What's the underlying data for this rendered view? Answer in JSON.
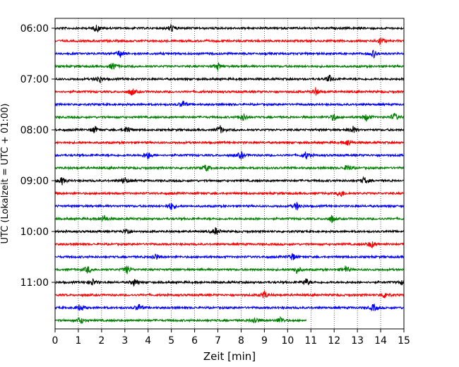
{
  "chart_data": {
    "type": "line",
    "xlabel": "Zeit  [min]",
    "ylabel": "UTC (Lokalzeit = UTC + 01:00)",
    "xlim": [
      0,
      15
    ],
    "x_ticks": [
      "0",
      "1",
      "2",
      "3",
      "4",
      "5",
      "6",
      "7",
      "8",
      "9",
      "10",
      "11",
      "12",
      "13",
      "14",
      "15"
    ],
    "y_ticks": [
      "06:00",
      "07:00",
      "08:00",
      "09:00",
      "10:00",
      "11:00"
    ],
    "grid": "vertical dotted at each minute",
    "trace_colors": [
      "#000000",
      "#ff0000",
      "#0000ff",
      "#008000"
    ],
    "trace_interval_min": 15,
    "traces": [
      {
        "start": "06:00",
        "end_min": 15,
        "events": [
          1.8,
          5.0
        ]
      },
      {
        "start": "06:15",
        "end_min": 15,
        "events": [
          14.0
        ]
      },
      {
        "start": "06:30",
        "end_min": 15,
        "events": [
          2.8,
          13.7
        ]
      },
      {
        "start": "06:45",
        "end_min": 15,
        "events": [
          2.5,
          7.0
        ]
      },
      {
        "start": "07:00",
        "end_min": 15,
        "events": [
          1.9,
          11.8
        ]
      },
      {
        "start": "07:15",
        "end_min": 15,
        "events": [
          3.3,
          11.2
        ]
      },
      {
        "start": "07:30",
        "end_min": 15,
        "events": [
          5.5
        ]
      },
      {
        "start": "07:45",
        "end_min": 15,
        "events": [
          8.1,
          12.0,
          13.4,
          14.6
        ]
      },
      {
        "start": "08:00",
        "end_min": 15,
        "events": [
          1.7,
          3.1,
          7.1,
          12.8
        ]
      },
      {
        "start": "08:15",
        "end_min": 15,
        "events": [
          12.6
        ]
      },
      {
        "start": "08:30",
        "end_min": 15,
        "events": [
          4.0,
          8.0,
          10.8
        ]
      },
      {
        "start": "08:45",
        "end_min": 15,
        "events": [
          6.5,
          12.6
        ]
      },
      {
        "start": "09:00",
        "end_min": 15,
        "events": [
          0.3,
          3.0,
          13.3
        ]
      },
      {
        "start": "09:15",
        "end_min": 15,
        "events": [
          12.3
        ]
      },
      {
        "start": "09:30",
        "end_min": 15,
        "events": [
          5.0,
          10.4
        ]
      },
      {
        "start": "09:45",
        "end_min": 15,
        "events": [
          2.1,
          11.9
        ]
      },
      {
        "start": "10:00",
        "end_min": 15,
        "events": [
          3.1,
          6.9
        ]
      },
      {
        "start": "10:15",
        "end_min": 15,
        "events": [
          13.6
        ]
      },
      {
        "start": "10:30",
        "end_min": 15,
        "events": [
          4.3,
          10.2
        ]
      },
      {
        "start": "10:45",
        "end_min": 15,
        "events": [
          1.4,
          3.1,
          10.4,
          12.5
        ]
      },
      {
        "start": "11:00",
        "end_min": 15,
        "events": [
          1.6,
          3.4,
          10.8,
          15.0
        ]
      },
      {
        "start": "11:15",
        "end_min": 15,
        "events": [
          9.0,
          14.2
        ]
      },
      {
        "start": "11:30",
        "end_min": 15,
        "events": [
          1.1,
          3.6,
          13.7
        ]
      },
      {
        "start": "11:45",
        "end_min": 10.8,
        "events": [
          1.1,
          8.6,
          9.7
        ]
      }
    ]
  }
}
